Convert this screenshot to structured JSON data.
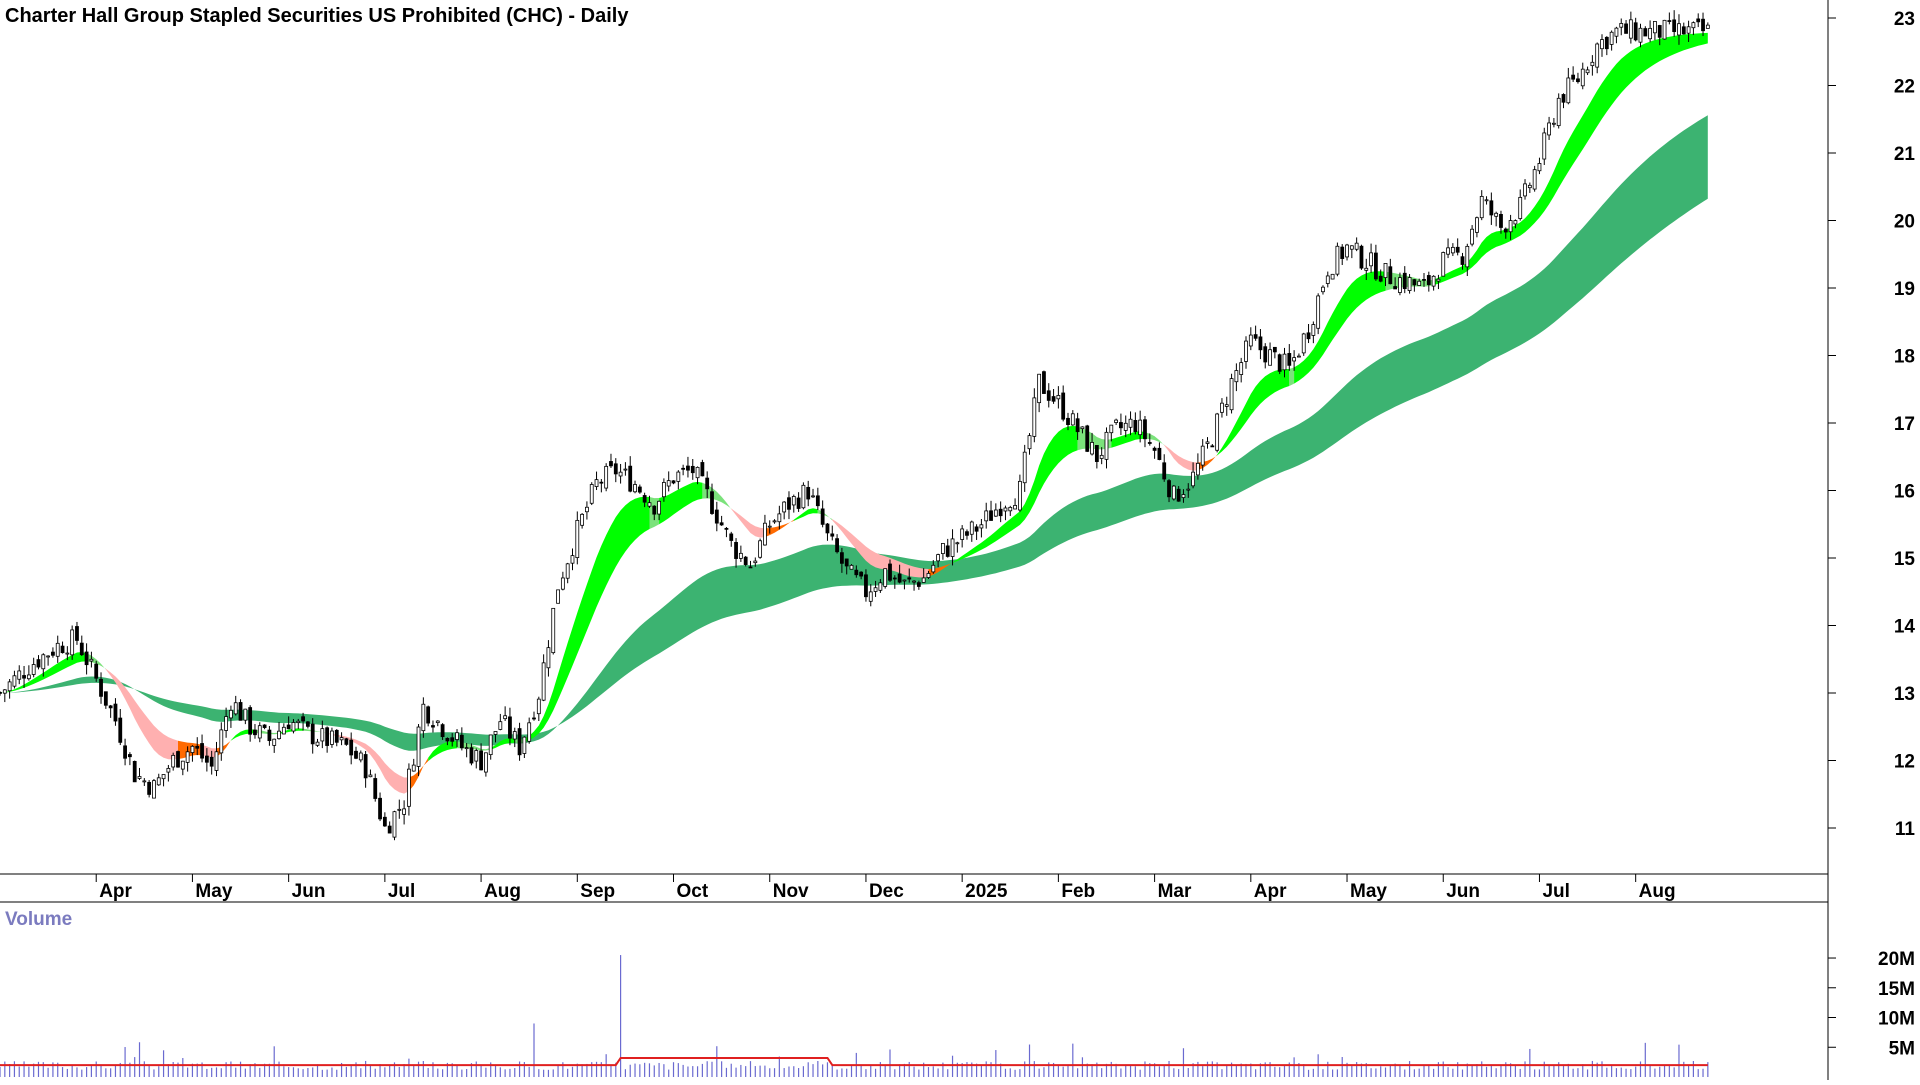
{
  "chart_data": {
    "type": "candlestick",
    "title": "Charter Hall Group Stapled Securities US Prohibited (CHC) - Daily",
    "price_axis": {
      "ticks": [
        11,
        12,
        13,
        14,
        15,
        16,
        17,
        18,
        19,
        20,
        21,
        22,
        23
      ],
      "range": [
        10.2,
        23.3
      ]
    },
    "time_axis": {
      "labels": [
        "Apr",
        "May",
        "Jun",
        "Jul",
        "Aug",
        "Sep",
        "Oct",
        "Nov",
        "Dec",
        "2025",
        "Feb",
        "Mar",
        "Apr",
        "May",
        "Jun",
        "Jul",
        "Aug"
      ],
      "label_months": [
        1,
        2,
        3,
        4,
        5,
        6,
        7,
        8,
        9,
        10,
        11,
        12,
        13,
        14,
        15,
        16,
        17
      ],
      "range_months": [
        0,
        18.5
      ]
    },
    "price_series": {
      "months": [
        0,
        0.3,
        0.6,
        0.8,
        1.0,
        1.2,
        1.4,
        1.6,
        1.8,
        2.0,
        2.2,
        2.4,
        2.6,
        2.8,
        3.0,
        3.2,
        3.4,
        3.6,
        3.8,
        4.0,
        4.2,
        4.4,
        4.6,
        4.8,
        5.0,
        5.2,
        5.4,
        5.6,
        5.8,
        6.0,
        6.2,
        6.4,
        6.6,
        6.8,
        7.0,
        7.2,
        7.4,
        7.6,
        7.8,
        8.0,
        8.2,
        8.4,
        8.6,
        8.8,
        9.0,
        9.2,
        9.4,
        9.6,
        9.8,
        10.0,
        10.2,
        10.4,
        10.6,
        10.8,
        11.0,
        11.2,
        11.4,
        11.6,
        11.8,
        12.0,
        12.2,
        12.4,
        12.6,
        12.8,
        13.0,
        13.2,
        13.4,
        13.6,
        13.8,
        14.0,
        14.2,
        14.4,
        14.6,
        14.8,
        15.0,
        15.2,
        15.4,
        15.6,
        15.8,
        16.0,
        16.2,
        16.4,
        16.6,
        16.8,
        17.0,
        17.2,
        17.4,
        17.6,
        17.8
      ],
      "close": [
        13.0,
        13.4,
        13.7,
        13.8,
        13.2,
        12.6,
        11.8,
        11.6,
        12.0,
        12.2,
        11.9,
        12.9,
        12.5,
        12.3,
        12.6,
        12.4,
        12.3,
        12.2,
        11.9,
        11.0,
        11.4,
        12.8,
        12.5,
        12.2,
        12.0,
        12.6,
        12.2,
        13.0,
        14.6,
        15.4,
        16.1,
        16.3,
        16.1,
        15.8,
        16.2,
        16.3,
        15.8,
        15.2,
        14.9,
        15.5,
        15.8,
        16.0,
        15.3,
        14.8,
        14.5,
        14.8,
        14.6,
        14.7,
        15.1,
        15.3,
        15.5,
        15.8,
        16.0,
        17.6,
        17.3,
        16.9,
        16.5,
        16.9,
        17.0,
        16.6,
        15.9,
        16.2,
        16.8,
        17.6,
        18.2,
        18.0,
        17.8,
        18.4,
        19.3,
        19.6,
        19.4,
        19.2,
        19.1,
        19.0,
        19.4,
        19.5,
        20.3,
        19.9,
        20.2,
        20.9,
        21.8,
        22.1,
        22.6,
        22.8,
        22.8,
        22.8,
        22.8,
        22.8,
        22.8
      ]
    },
    "series": [
      {
        "name": "Volume",
        "y_ticks": [
          "5M",
          "10M",
          "15M",
          "20M"
        ]
      }
    ]
  }
}
